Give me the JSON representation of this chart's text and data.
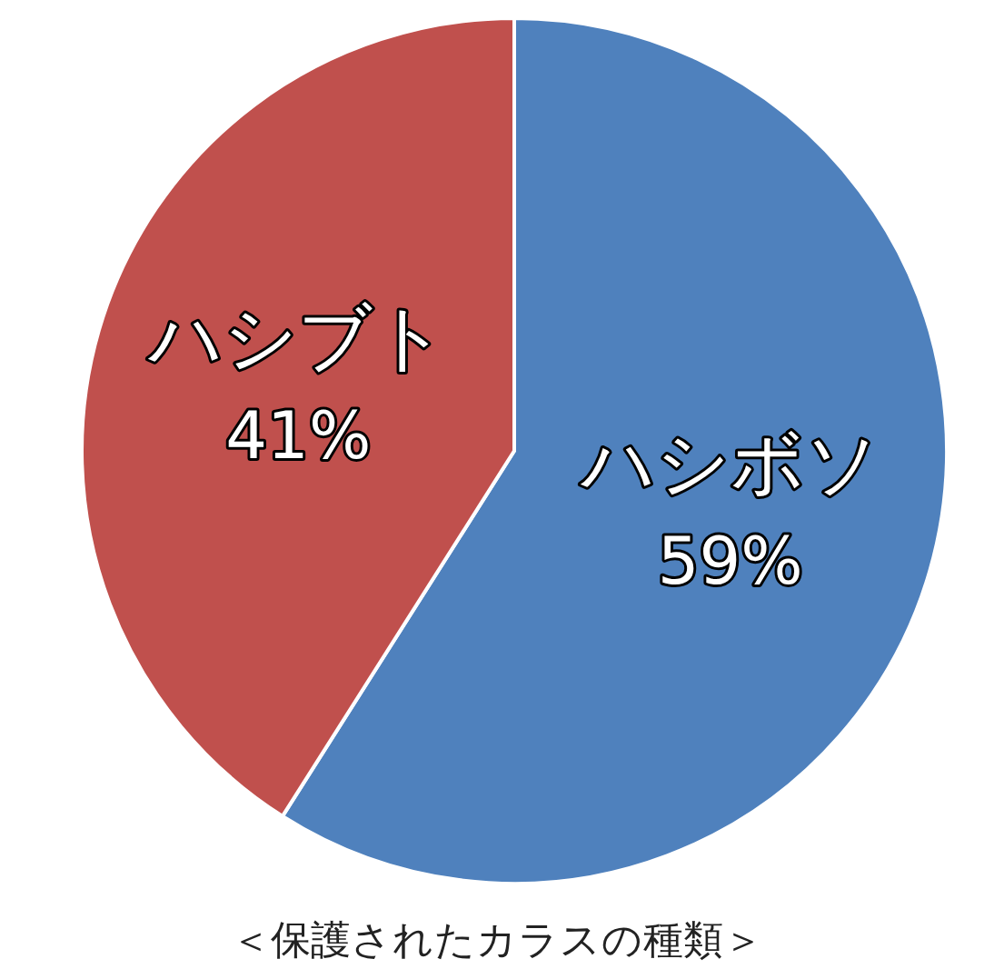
{
  "chart_data": {
    "type": "pie",
    "title": "＜保護されたカラスの種類＞",
    "categories": [
      "ハシボソ",
      "ハシブト"
    ],
    "values": [
      59,
      41
    ],
    "colors": [
      "#4f81bd",
      "#c0504d"
    ],
    "value_labels": [
      "59%",
      "41%"
    ]
  }
}
